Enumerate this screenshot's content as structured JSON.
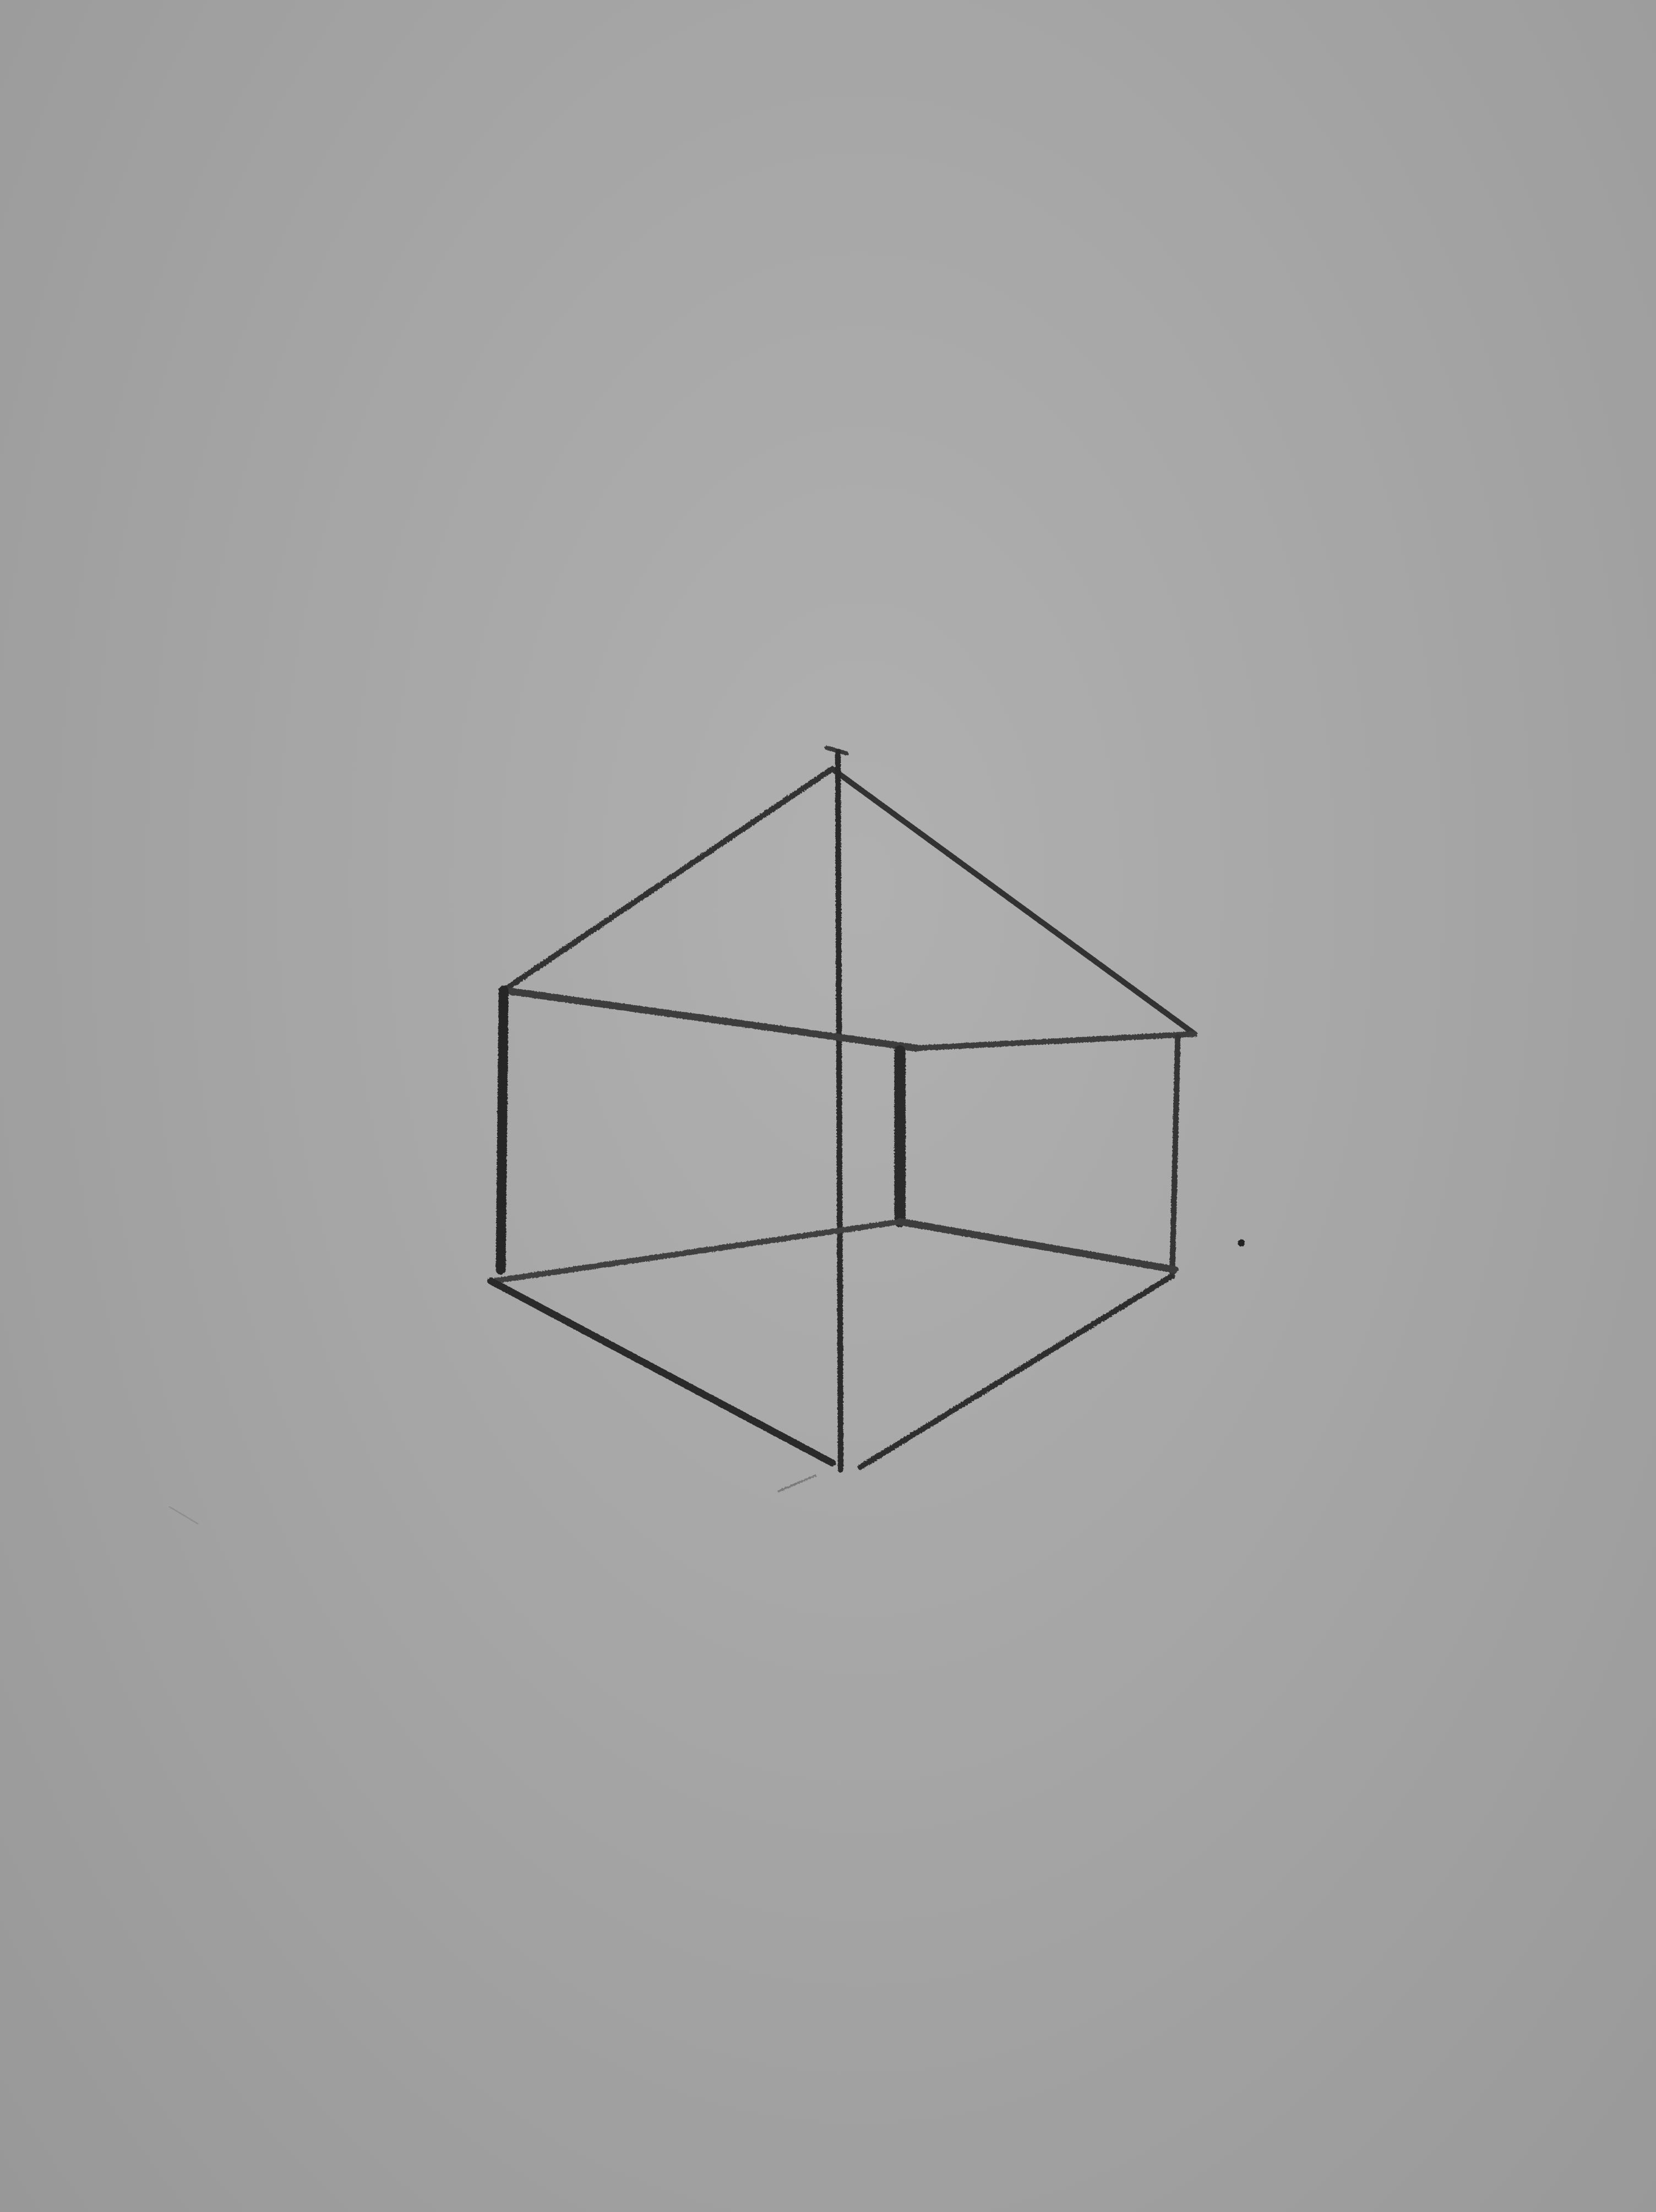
{
  "scene": {
    "subject": "pencil sketch",
    "colors": {
      "paper": "#a6a6a6",
      "pencil": "#2f2f2f",
      "pencil_light": "#555555"
    }
  }
}
